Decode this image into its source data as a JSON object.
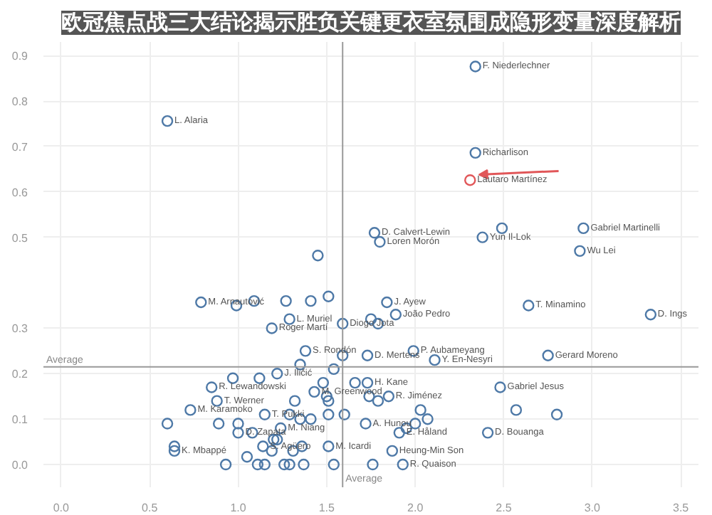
{
  "chart_data": {
    "type": "scatter",
    "title": "欧冠焦点战三大结论揭示胜负关键更衣室氛围成隐形变量深度解析",
    "xlim": [
      -0.1,
      3.6
    ],
    "ylim": [
      -0.05,
      0.93
    ],
    "xticks": [
      {
        "value": 0,
        "label": "0.0"
      },
      {
        "value": 0.5,
        "label": "0.5"
      },
      {
        "value": 1,
        "label": "1.0"
      },
      {
        "value": 1.5,
        "label": "1.5"
      },
      {
        "value": 2,
        "label": "2.0"
      },
      {
        "value": 2.5,
        "label": "2.5"
      },
      {
        "value": 3,
        "label": "3.0"
      },
      {
        "value": 3.5,
        "label": "3.5"
      }
    ],
    "yticks": [
      {
        "value": 0,
        "label": "0.0"
      },
      {
        "value": 0.1,
        "label": "0.1"
      },
      {
        "value": 0.2,
        "label": "0.2"
      },
      {
        "value": 0.3,
        "label": "0.3"
      },
      {
        "value": 0.5,
        "label": "0.5"
      },
      {
        "value": 0.6,
        "label": "0.6"
      },
      {
        "value": 0.7,
        "label": "0.7"
      },
      {
        "value": 0.8,
        "label": "0.8"
      },
      {
        "value": 0.9,
        "label": "0.9"
      }
    ],
    "grid": true,
    "marker": "circle",
    "series": [
      {
        "color": "#4e79a7",
        "x": [
          2.34,
          0.6,
          2.34,
          1.77,
          1.8,
          2.38,
          2.49,
          2.95,
          2.93,
          1.45,
          0.79,
          0.99,
          1.09,
          1.27,
          1.41,
          1.51,
          1.29,
          1.19,
          1.59,
          1.38,
          1.35,
          1.59,
          1.54,
          1.22,
          1.12,
          0.97,
          0.85,
          1.43,
          1.48,
          1.5,
          1.51,
          0.88,
          1.32,
          0.73,
          1.15,
          1.29,
          1.35,
          1.41,
          1.51,
          1.6,
          0.6,
          0.89,
          1.0,
          1.24,
          1.0,
          1.08,
          1.51,
          1.14,
          1.2,
          1.22,
          1.19,
          1.31,
          1.36,
          1.05,
          0.64,
          0.64,
          0.93,
          1.11,
          1.15,
          1.26,
          1.29,
          1.37,
          1.54,
          1.84,
          2.64,
          1.89,
          3.33,
          1.75,
          1.79,
          1.99,
          1.73,
          2.11,
          2.75,
          1.73,
          1.66,
          1.85,
          1.74,
          1.79,
          2.48,
          2.03,
          2.57,
          2.8,
          2.07,
          2.0,
          1.72,
          1.95,
          1.91,
          2.41,
          1.87,
          1.93,
          1.76
        ],
        "values": [
          0.876,
          0.756,
          0.686,
          0.51,
          0.49,
          0.5,
          0.52,
          0.52,
          0.47,
          0.46,
          0.357,
          0.35,
          0.36,
          0.36,
          0.36,
          0.37,
          0.32,
          0.3,
          0.31,
          0.25,
          0.22,
          0.24,
          0.21,
          0.2,
          0.19,
          0.19,
          0.17,
          0.16,
          0.18,
          0.15,
          0.14,
          0.14,
          0.14,
          0.12,
          0.11,
          0.11,
          0.1,
          0.1,
          0.11,
          0.11,
          0.09,
          0.09,
          0.09,
          0.08,
          0.07,
          0.07,
          0.04,
          0.04,
          0.055,
          0.055,
          0.03,
          0.03,
          0.04,
          0.017,
          0.04,
          0.03,
          0.0,
          0.0,
          0.0,
          0.0,
          0.0,
          0.0,
          0.0,
          0.357,
          0.35,
          0.33,
          0.33,
          0.32,
          0.31,
          0.25,
          0.24,
          0.23,
          0.24,
          0.18,
          0.18,
          0.15,
          0.15,
          0.14,
          0.17,
          0.12,
          0.12,
          0.11,
          0.1,
          0.09,
          0.09,
          0.08,
          0.07,
          0.07,
          0.03,
          0.0,
          0.0
        ]
      },
      {
        "type": "scatter",
        "color": "#e15759",
        "x": [
          2.31
        ],
        "values": [
          0.626
        ]
      }
    ],
    "ref_lines": [
      {
        "axis": "y",
        "value": 0.215,
        "label": "Average",
        "color": "#999999"
      },
      {
        "axis": "x",
        "value": 1.59,
        "label": "Average",
        "color": "#999999"
      }
    ],
    "annotations": [
      {
        "text": "F. Niederlechner",
        "x": 2.34,
        "y": 0.876
      },
      {
        "text": "L. Alaria",
        "x": 0.6,
        "y": 0.756
      },
      {
        "text": "Richarlison",
        "x": 2.34,
        "y": 0.686
      },
      {
        "text": "Lautaro Martínez",
        "x": 2.31,
        "y": 0.626
      },
      {
        "text": "D. Calvert-Lewin",
        "x": 1.77,
        "y": 0.51
      },
      {
        "text": "Loren Morón",
        "x": 1.8,
        "y": 0.49
      },
      {
        "text": "Yun Il-Lok",
        "x": 2.38,
        "y": 0.5
      },
      {
        "text": "Gabriel Martinelli",
        "x": 2.95,
        "y": 0.52
      },
      {
        "text": "Wu Lei",
        "x": 2.93,
        "y": 0.47
      },
      {
        "text": "M. Arnautović",
        "x": 0.79,
        "y": 0.357
      },
      {
        "text": "L. Muriel",
        "x": 1.29,
        "y": 0.32
      },
      {
        "text": "Roger Martí",
        "x": 1.19,
        "y": 0.3
      },
      {
        "text": "Diogo Jota",
        "x": 1.59,
        "y": 0.31
      },
      {
        "text": "S. Rondón",
        "x": 1.38,
        "y": 0.25
      },
      {
        "text": "J. Iličić",
        "x": 1.22,
        "y": 0.2
      },
      {
        "text": "R. Lewandowski",
        "x": 0.85,
        "y": 0.17
      },
      {
        "text": "M. Greenwood",
        "x": 1.43,
        "y": 0.16
      },
      {
        "text": "T. Werner",
        "x": 0.88,
        "y": 0.14
      },
      {
        "text": "M. Karamoko",
        "x": 0.73,
        "y": 0.12
      },
      {
        "text": "T. Pukki",
        "x": 1.15,
        "y": 0.11
      },
      {
        "text": "D. Zapata",
        "x": 1.0,
        "y": 0.07
      },
      {
        "text": "M. Niang",
        "x": 1.24,
        "y": 0.08
      },
      {
        "text": "S. Agüero",
        "x": 1.14,
        "y": 0.04
      },
      {
        "text": "M. Icardi",
        "x": 1.51,
        "y": 0.04
      },
      {
        "text": "K. Mbappé",
        "x": 0.64,
        "y": 0.03
      },
      {
        "text": "J. Ayew",
        "x": 1.84,
        "y": 0.357
      },
      {
        "text": "T. Minamino",
        "x": 2.64,
        "y": 0.35
      },
      {
        "text": "João Pedro",
        "x": 1.89,
        "y": 0.33
      },
      {
        "text": "D. Ings",
        "x": 3.33,
        "y": 0.33
      },
      {
        "text": "P. Aubameyang",
        "x": 1.99,
        "y": 0.25
      },
      {
        "text": "D. Mertens",
        "x": 1.73,
        "y": 0.24
      },
      {
        "text": "Y. En-Nesyri",
        "x": 2.11,
        "y": 0.23
      },
      {
        "text": "Gerard Moreno",
        "x": 2.75,
        "y": 0.24
      },
      {
        "text": "H. Kane",
        "x": 1.73,
        "y": 0.18
      },
      {
        "text": "R. Jiménez",
        "x": 1.85,
        "y": 0.15
      },
      {
        "text": "Gabriel Jesus",
        "x": 2.48,
        "y": 0.17
      },
      {
        "text": "D. Bouanga",
        "x": 2.41,
        "y": 0.07
      },
      {
        "text": "E. Håland",
        "x": 1.91,
        "y": 0.07
      },
      {
        "text": "A. Hunou",
        "x": 1.72,
        "y": 0.09
      },
      {
        "text": "Heung-Min Son",
        "x": 1.87,
        "y": 0.03
      },
      {
        "text": "R. Quaison",
        "x": 1.93,
        "y": 0.0
      }
    ]
  }
}
